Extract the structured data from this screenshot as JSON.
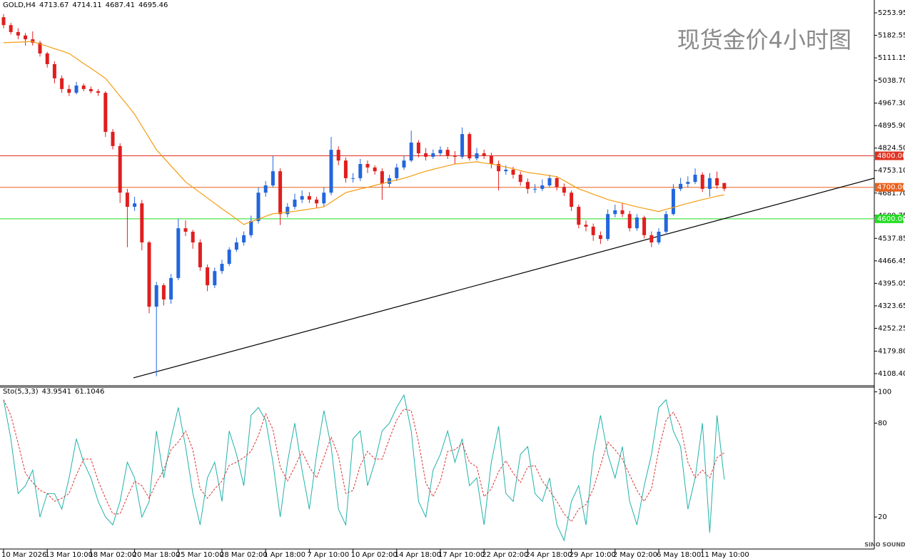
{
  "chart_data": [
    {
      "type": "candlestick",
      "symbol": "GOLD,H4",
      "header_values": [
        4713.67,
        4714.11,
        4687.41,
        4695.46
      ],
      "watermark": "现货金价4小时图",
      "logo": "SINO SOUND",
      "up_color": "#2266dd",
      "down_color": "#e01e1e",
      "categories": [
        "10 Mar 2026",
        null,
        null,
        null,
        null,
        null,
        "13 Mar 10:00",
        null,
        null,
        null,
        null,
        null,
        "18 Mar 02:00",
        null,
        null,
        null,
        null,
        null,
        "20 Mar 18:00",
        null,
        null,
        null,
        null,
        null,
        "25 Mar 10:00",
        null,
        null,
        null,
        null,
        null,
        "28 Mar 02:00",
        null,
        null,
        null,
        null,
        null,
        "1 Apr 18:00",
        null,
        null,
        null,
        null,
        null,
        "7 Apr 10:00",
        null,
        null,
        null,
        null,
        null,
        "10 Apr 02:00",
        null,
        null,
        null,
        null,
        null,
        "14 Apr 18:00",
        null,
        null,
        null,
        null,
        null,
        "17 Apr 10:00",
        null,
        null,
        null,
        null,
        null,
        "22 Apr 02:00",
        null,
        null,
        null,
        null,
        null,
        "24 Apr 18:00",
        null,
        null,
        null,
        null,
        null,
        "29 Apr 10:00",
        null,
        null,
        null,
        null,
        null,
        "2 May 02:00",
        null,
        null,
        null,
        null,
        null,
        "6 May 18:00",
        null,
        null,
        null,
        null,
        null,
        "11 May 10:00",
        null,
        null,
        null
      ],
      "open": [
        5240,
        5215,
        5193,
        5182,
        5170,
        5159,
        5125,
        5091,
        5046,
        5012,
        5000,
        5023,
        5012,
        5005,
        5000,
        4876,
        4831,
        4683,
        4638,
        4649,
        4525,
        4321,
        4389,
        4344,
        4412,
        4570,
        4559,
        4525,
        4446,
        4389,
        4434,
        4457,
        4502,
        4525,
        4548,
        4593,
        4683,
        4706,
        4751,
        4615,
        4638,
        4661,
        4672,
        4661,
        4649,
        4683,
        4819,
        4785,
        4729,
        4729,
        4774,
        4763,
        4751,
        4711,
        4729,
        4763,
        4785,
        4842,
        4808,
        4797,
        4808,
        4819,
        4801,
        4797,
        4869,
        4792,
        4808,
        4801,
        4774,
        4751,
        4756,
        4740,
        4717,
        4695,
        4695,
        4706,
        4729,
        4701,
        4683,
        4638,
        4581,
        4575,
        4548,
        4536,
        4615,
        4627,
        4615,
        4570,
        4604,
        4548,
        4525,
        4559,
        4615,
        4695,
        4711,
        4717,
        4740,
        4695,
        4729,
        4713.67
      ],
      "high": [
        5250,
        5222,
        5205,
        5190,
        5195,
        5165,
        5130,
        5100,
        5055,
        5025,
        5035,
        5030,
        5020,
        5012,
        5005,
        4885,
        4840,
        4695,
        4670,
        4660,
        4530,
        4400,
        4395,
        4425,
        4600,
        4595,
        4565,
        4535,
        4455,
        4445,
        4470,
        4510,
        4540,
        4560,
        4610,
        4700,
        4720,
        4800,
        4760,
        4650,
        4680,
        4690,
        4685,
        4670,
        4700,
        4860,
        4830,
        4795,
        4745,
        4790,
        4785,
        4770,
        4760,
        4740,
        4775,
        4800,
        4880,
        4850,
        4825,
        4820,
        4830,
        4828,
        4815,
        4890,
        4875,
        4825,
        4820,
        4810,
        4785,
        4770,
        4765,
        4750,
        4728,
        4710,
        4725,
        4740,
        4735,
        4712,
        4690,
        4645,
        4595,
        4585,
        4560,
        4630,
        4645,
        4650,
        4625,
        4615,
        4610,
        4560,
        4570,
        4625,
        4710,
        4730,
        4735,
        4760,
        4748,
        4745,
        4750,
        4714.11
      ],
      "low": [
        5205,
        5185,
        5170,
        5150,
        5150,
        5115,
        5080,
        5030,
        5000,
        4990,
        4995,
        5005,
        4998,
        4990,
        4860,
        4820,
        4650,
        4510,
        4625,
        4500,
        4300,
        4100,
        4325,
        4330,
        4405,
        4545,
        4505,
        4435,
        4370,
        4380,
        4425,
        4450,
        4495,
        4515,
        4540,
        4585,
        4670,
        4700,
        4580,
        4605,
        4630,
        4650,
        4650,
        4635,
        4640,
        4675,
        4770,
        4715,
        4715,
        4720,
        4745,
        4740,
        4660,
        4700,
        4720,
        4755,
        4780,
        4795,
        4785,
        4790,
        4800,
        4790,
        4775,
        4790,
        4785,
        4785,
        4790,
        4760,
        4690,
        4740,
        4728,
        4705,
        4680,
        4682,
        4688,
        4700,
        4690,
        4672,
        4625,
        4570,
        4560,
        4530,
        4520,
        4530,
        4605,
        4605,
        4560,
        4562,
        4538,
        4510,
        4518,
        4550,
        4610,
        4688,
        4700,
        4710,
        4685,
        4670,
        4695,
        4687.41
      ],
      "close": [
        5215,
        5193,
        5182,
        5170,
        5159,
        5125,
        5091,
        5046,
        5012,
        5000,
        5023,
        5012,
        5005,
        5000,
        4876,
        4831,
        4683,
        4638,
        4649,
        4525,
        4321,
        4389,
        4344,
        4412,
        4570,
        4559,
        4525,
        4446,
        4389,
        4434,
        4457,
        4502,
        4525,
        4548,
        4593,
        4683,
        4706,
        4751,
        4615,
        4638,
        4661,
        4672,
        4661,
        4649,
        4683,
        4819,
        4785,
        4729,
        4729,
        4774,
        4763,
        4751,
        4711,
        4729,
        4763,
        4785,
        4842,
        4808,
        4797,
        4808,
        4819,
        4801,
        4797,
        4869,
        4792,
        4808,
        4801,
        4774,
        4751,
        4756,
        4740,
        4717,
        4695,
        4695,
        4706,
        4729,
        4701,
        4683,
        4638,
        4581,
        4575,
        4548,
        4536,
        4615,
        4627,
        4615,
        4570,
        4604,
        4548,
        4525,
        4559,
        4615,
        4695,
        4711,
        4717,
        4740,
        4695,
        4729,
        4706,
        4695.46
      ],
      "ma": {
        "color": "#f39c12",
        "values": [
          5159,
          5160,
          5161,
          5162,
          5163,
          5155,
          5148,
          5140,
          5133,
          5125,
          5109,
          5093,
          5078,
          5062,
          5046,
          5018,
          4989,
          4961,
          4932,
          4894,
          4857,
          4819,
          4794,
          4768,
          4743,
          4717,
          4700,
          4683,
          4666,
          4649,
          4632,
          4616,
          4599,
          4582,
          4591,
          4599,
          4608,
          4616,
          4619,
          4621,
          4624,
          4627,
          4631,
          4634,
          4638,
          4653,
          4668,
          4683,
          4689,
          4695,
          4700,
          4706,
          4712,
          4718,
          4723,
          4729,
          4736,
          4744,
          4751,
          4757,
          4763,
          4768,
          4774,
          4776,
          4779,
          4781,
          4777,
          4774,
          4770,
          4764,
          4759,
          4753,
          4747,
          4744,
          4741,
          4737,
          4734,
          4721,
          4708,
          4695,
          4687,
          4678,
          4670,
          4661,
          4655,
          4650,
          4644,
          4638,
          4633,
          4628,
          4623,
          4630,
          4636,
          4643,
          4649,
          4655,
          4661,
          4666,
          4672,
          4676
        ]
      },
      "levels": [
        {
          "value": 4800,
          "label": "4800.00",
          "color": "#e0301e"
        },
        {
          "value": 4700,
          "label": "4700.00",
          "color": "#e8601c"
        },
        {
          "value": 4600,
          "label": "4600.00",
          "color": "#22dd22"
        }
      ],
      "trendline": [
        4095,
        4729
      ],
      "ylim": [
        4072.2,
        5294.7
      ],
      "yticks": [
        5253.95,
        5182.55,
        5111.15,
        {
          "value": 5038.7,
          "label": "5038.70"
        },
        {
          "value": 4967.3,
          "label": "4967.30"
        },
        {
          "value": 4895.9,
          "label": "4895.90"
        },
        {
          "value": 4824.5,
          "label": "4824.50"
        },
        {
          "value": 4753.1,
          "label": "4753.10"
        },
        {
          "value": 4681.7,
          "label": "4681.70"
        },
        4609.75,
        4537.85,
        4466.45,
        4395.05,
        4323.65,
        4252.25,
        {
          "value": 4179.8,
          "label": "4179.80"
        },
        {
          "value": 4108.4,
          "label": "4108.40"
        }
      ]
    },
    {
      "type": "line",
      "title": "Sto(5,3,3)",
      "header_values": [
        43.9541,
        61.1046
      ],
      "series": [
        {
          "color": "#20b2aa",
          "values": [
            95,
            70,
            35,
            40,
            50,
            20,
            35,
            35,
            25,
            45,
            70,
            55,
            45,
            30,
            20,
            15,
            30,
            55,
            45,
            20,
            30,
            75,
            45,
            70,
            90,
            65,
            35,
            15,
            45,
            55,
            30,
            75,
            60,
            40,
            85,
            90,
            82,
            55,
            20,
            55,
            80,
            50,
            25,
            60,
            88,
            65,
            25,
            15,
            70,
            75,
            40,
            55,
            75,
            80,
            90,
            98,
            75,
            30,
            20,
            50,
            60,
            75,
            55,
            70,
            40,
            45,
            15,
            55,
            78,
            35,
            30,
            60,
            65,
            35,
            30,
            45,
            15,
            5,
            30,
            40,
            15,
            60,
            85,
            60,
            45,
            65,
            30,
            15,
            40,
            60,
            90,
            95,
            75,
            65,
            25,
            45,
            80,
            10,
            85,
            43.9541
          ]
        },
        {
          "color": "#e03030",
          "dashed": true,
          "values": [
            95,
            85,
            67,
            48,
            42,
            37,
            35,
            30,
            32,
            35,
            47,
            57,
            57,
            43,
            32,
            22,
            22,
            33,
            43,
            40,
            32,
            42,
            50,
            63,
            68,
            75,
            63,
            38,
            32,
            38,
            43,
            53,
            55,
            58,
            62,
            72,
            86,
            76,
            52,
            43,
            52,
            62,
            52,
            45,
            58,
            71,
            59,
            35,
            37,
            53,
            62,
            57,
            57,
            70,
            82,
            89,
            88,
            68,
            42,
            33,
            43,
            62,
            63,
            67,
            55,
            52,
            33,
            38,
            49,
            56,
            48,
            42,
            52,
            53,
            43,
            37,
            30,
            22,
            17,
            25,
            28,
            38,
            53,
            68,
            63,
            57,
            47,
            37,
            30,
            38,
            63,
            82,
            87,
            78,
            55,
            45,
            50,
            45,
            58,
            61.1046
          ]
        }
      ],
      "ylim": [
        0,
        103
      ],
      "yticks": [
        100,
        80,
        20
      ]
    }
  ]
}
